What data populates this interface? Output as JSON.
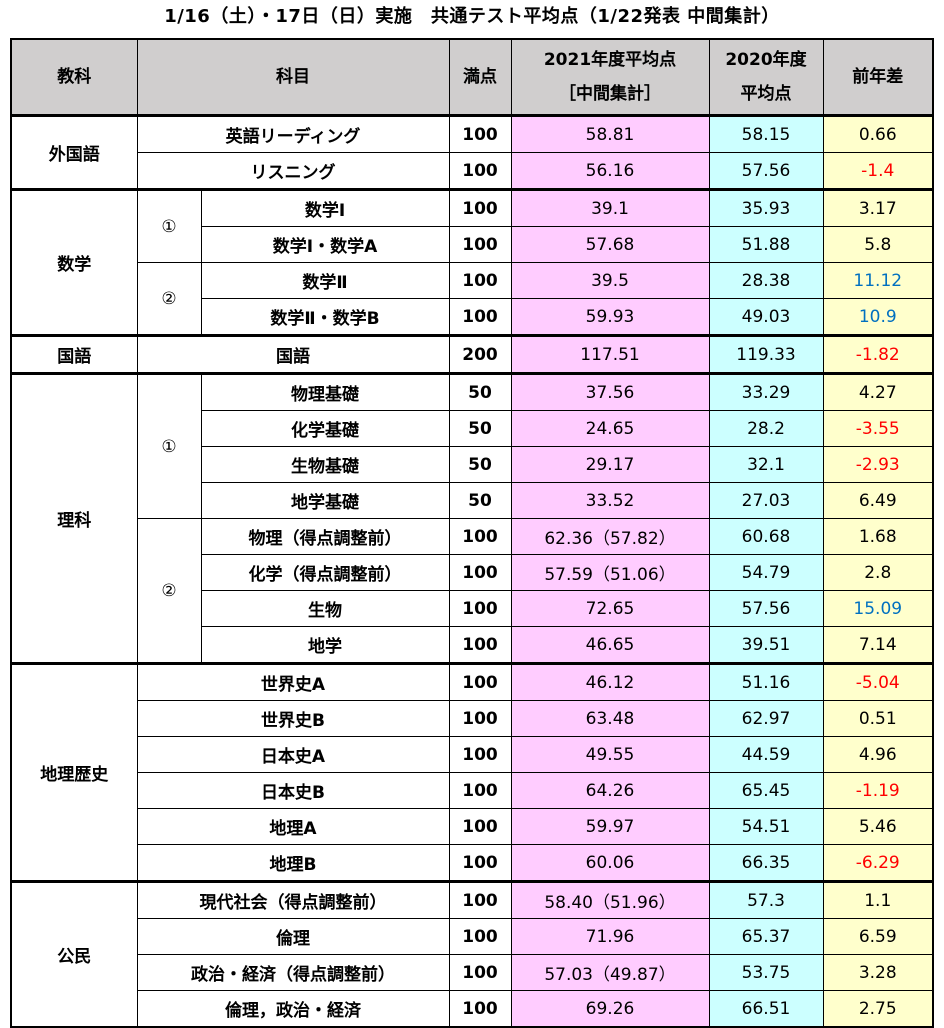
{
  "title": "1/16（土）・17日（日）実施　共通テスト平均点（1/22発表 中間集計）",
  "header": {
    "category": "教科",
    "subject": "科目",
    "full": "満点",
    "avg2021_line1": "2021年度平均点",
    "avg2021_line2": "［中間集計］",
    "avg2020_line1": "2020年度",
    "avg2020_line2": "平均点",
    "diff": "前年差"
  },
  "groups": {
    "foreign": "外国語",
    "math": "数学",
    "japanese": "国語",
    "science": "理科",
    "geohist": "地理歴史",
    "civics": "公民",
    "mark1": "①",
    "mark2": "②"
  },
  "rows": [
    {
      "subject": "英語リーディング",
      "full": "100",
      "avg2021": "58.81",
      "avg2020": "58.15",
      "diff": "0.66"
    },
    {
      "subject": "リスニング",
      "full": "100",
      "avg2021": "56.16",
      "avg2020": "57.56",
      "diff": "-1.4"
    },
    {
      "subject": "数学Ⅰ",
      "full": "100",
      "avg2021": "39.1",
      "avg2020": "35.93",
      "diff": "3.17"
    },
    {
      "subject": "数学Ⅰ・数学A",
      "full": "100",
      "avg2021": "57.68",
      "avg2020": "51.88",
      "diff": "5.8"
    },
    {
      "subject": "数学Ⅱ",
      "full": "100",
      "avg2021": "39.5",
      "avg2020": "28.38",
      "diff": "11.12"
    },
    {
      "subject": "数学Ⅱ・数学B",
      "full": "100",
      "avg2021": "59.93",
      "avg2020": "49.03",
      "diff": "10.9"
    },
    {
      "subject": "国語",
      "full": "200",
      "avg2021": "117.51",
      "avg2020": "119.33",
      "diff": "-1.82"
    },
    {
      "subject": "物理基礎",
      "full": "50",
      "avg2021": "37.56",
      "avg2020": "33.29",
      "diff": "4.27"
    },
    {
      "subject": "化学基礎",
      "full": "50",
      "avg2021": "24.65",
      "avg2020": "28.2",
      "diff": "-3.55"
    },
    {
      "subject": "生物基礎",
      "full": "50",
      "avg2021": "29.17",
      "avg2020": "32.1",
      "diff": "-2.93"
    },
    {
      "subject": "地学基礎",
      "full": "50",
      "avg2021": "33.52",
      "avg2020": "27.03",
      "diff": "6.49"
    },
    {
      "subject": "物理（得点調整前）",
      "full": "100",
      "avg2021": "62.36（57.82）",
      "avg2020": "60.68",
      "diff": "1.68"
    },
    {
      "subject": "化学（得点調整前）",
      "full": "100",
      "avg2021": "57.59（51.06）",
      "avg2020": "54.79",
      "diff": "2.8"
    },
    {
      "subject": "生物",
      "full": "100",
      "avg2021": "72.65",
      "avg2020": "57.56",
      "diff": "15.09"
    },
    {
      "subject": "地学",
      "full": "100",
      "avg2021": "46.65",
      "avg2020": "39.51",
      "diff": "7.14"
    },
    {
      "subject": "世界史A",
      "full": "100",
      "avg2021": "46.12",
      "avg2020": "51.16",
      "diff": "-5.04"
    },
    {
      "subject": "世界史B",
      "full": "100",
      "avg2021": "63.48",
      "avg2020": "62.97",
      "diff": "0.51"
    },
    {
      "subject": "日本史A",
      "full": "100",
      "avg2021": "49.55",
      "avg2020": "44.59",
      "diff": "4.96"
    },
    {
      "subject": "日本史B",
      "full": "100",
      "avg2021": "64.26",
      "avg2020": "65.45",
      "diff": "-1.19"
    },
    {
      "subject": "地理A",
      "full": "100",
      "avg2021": "59.97",
      "avg2020": "54.51",
      "diff": "5.46"
    },
    {
      "subject": "地理B",
      "full": "100",
      "avg2021": "60.06",
      "avg2020": "66.35",
      "diff": "-6.29"
    },
    {
      "subject": "現代社会（得点調整前）",
      "full": "100",
      "avg2021": "58.40（51.96）",
      "avg2020": "57.3",
      "diff": "1.1"
    },
    {
      "subject": "倫理",
      "full": "100",
      "avg2021": "71.96",
      "avg2020": "65.37",
      "diff": "6.59"
    },
    {
      "subject": "政治・経済（得点調整前）",
      "full": "100",
      "avg2021": "57.03（49.87）",
      "avg2020": "53.75",
      "diff": "3.28"
    },
    {
      "subject": "倫理，政治・経済",
      "full": "100",
      "avg2021": "69.26",
      "avg2020": "66.51",
      "diff": "2.75"
    }
  ],
  "colors": {
    "header_bg": "#d0cece",
    "avg2021_bg": "#ffccff",
    "avg2020_bg": "#ccffff",
    "diff_bg": "#ffffcc",
    "negative": "#ff0000",
    "large_increase": "#0070c0"
  }
}
